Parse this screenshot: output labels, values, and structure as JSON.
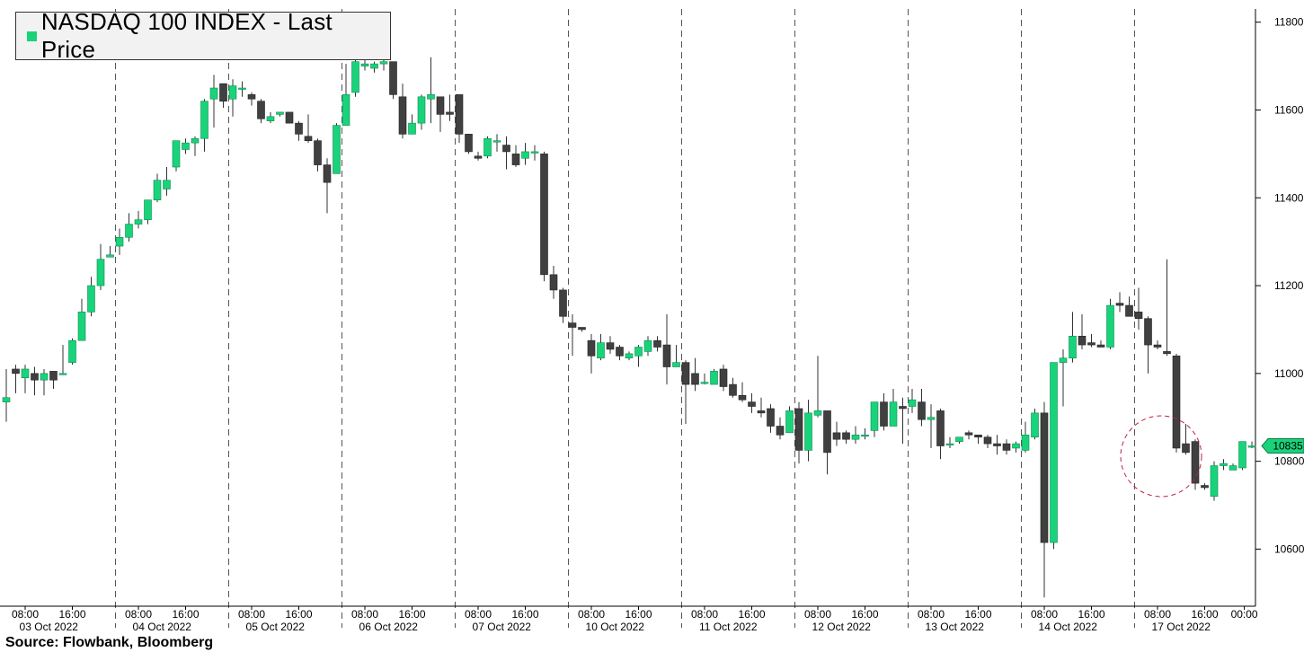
{
  "legend": {
    "label": "NASDAQ 100 INDEX - Last Price",
    "swatch_color": "#19d37a"
  },
  "source": "Source:  Flowbank, Bloomberg",
  "colors": {
    "up": "#19d37a",
    "down": "#404040",
    "wick": "#333333"
  },
  "chart_data": {
    "type": "candlestick",
    "title": "NASDAQ 100 INDEX - Last Price",
    "ylim": [
      10470,
      11830
    ],
    "yticks": [
      10600,
      10800,
      11000,
      11200,
      11400,
      11600,
      11800
    ],
    "last_price": 10835,
    "days": [
      {
        "date": "03 Oct 2022",
        "ticks": [
          "08:00",
          "16:00"
        ]
      },
      {
        "date": "04 Oct 2022",
        "ticks": [
          "08:00",
          "16:00"
        ]
      },
      {
        "date": "05 Oct 2022",
        "ticks": [
          "08:00",
          "16:00"
        ]
      },
      {
        "date": "06 Oct 2022",
        "ticks": [
          "08:00",
          "16:00"
        ]
      },
      {
        "date": "07 Oct 2022",
        "ticks": [
          "08:00",
          "16:00"
        ]
      },
      {
        "date": "10 Oct 2022",
        "ticks": [
          "08:00",
          "16:00"
        ]
      },
      {
        "date": "11 Oct 2022",
        "ticks": [
          "08:00",
          "16:00"
        ]
      },
      {
        "date": "12 Oct 2022",
        "ticks": [
          "08:00",
          "16:00"
        ]
      },
      {
        "date": "13 Oct 2022",
        "ticks": [
          "08:00",
          "16:00"
        ]
      },
      {
        "date": "14 Oct 2022",
        "ticks": [
          "08:00",
          "16:00"
        ]
      },
      {
        "date": "17 Oct 2022",
        "ticks": [
          "08:00",
          "16:00",
          "00:00"
        ]
      }
    ],
    "candles": [
      [
        10935,
        11010,
        10945,
        10890
      ],
      [
        11010,
        11020,
        11000,
        10955
      ],
      [
        10990,
        11020,
        11010,
        10955
      ],
      [
        11000,
        11015,
        10985,
        10950
      ],
      [
        10985,
        11010,
        11000,
        10950
      ],
      [
        11005,
        11005,
        10985,
        10965
      ],
      [
        11000,
        11065,
        11000,
        11000
      ],
      [
        11025,
        11080,
        11075,
        11020
      ],
      [
        11075,
        11170,
        11140,
        11105
      ],
      [
        11140,
        11220,
        11200,
        11130
      ],
      [
        11200,
        11295,
        11260,
        11190
      ],
      [
        11265,
        11290,
        11270,
        11265
      ],
      [
        11290,
        11330,
        11310,
        11270
      ],
      [
        11310,
        11365,
        11340,
        11300
      ],
      [
        11340,
        11370,
        11350,
        11330
      ],
      [
        11350,
        11385,
        11395,
        11340
      ],
      [
        11395,
        11455,
        11440,
        11390
      ],
      [
        11420,
        11470,
        11440,
        11405
      ],
      [
        11470,
        11530,
        11530,
        11460
      ],
      [
        11510,
        11535,
        11525,
        11500
      ],
      [
        11525,
        11540,
        11535,
        11495
      ],
      [
        11535,
        11625,
        11620,
        11505
      ],
      [
        11625,
        11680,
        11650,
        11560
      ],
      [
        11660,
        11660,
        11620,
        11605
      ],
      [
        11625,
        11670,
        11655,
        11585
      ],
      [
        11650,
        11665,
        11650,
        11630
      ],
      [
        11635,
        11640,
        11625,
        11610
      ],
      [
        11620,
        11625,
        11580,
        11570
      ],
      [
        11575,
        11595,
        11585,
        11570
      ],
      [
        11590,
        11595,
        11595,
        11585
      ],
      [
        11595,
        11595,
        11570,
        11570
      ],
      [
        11570,
        11575,
        11545,
        11530
      ],
      [
        11540,
        11590,
        11530,
        11525
      ],
      [
        11530,
        11535,
        11475,
        11460
      ],
      [
        11475,
        11490,
        11435,
        11365
      ],
      [
        11455,
        11570,
        11565,
        11455
      ],
      [
        11565,
        11705,
        11635,
        11565
      ],
      [
        11640,
        11725,
        11710,
        11630
      ],
      [
        11700,
        11720,
        11705,
        11690
      ],
      [
        11695,
        11710,
        11705,
        11685
      ],
      [
        11705,
        11720,
        11710,
        11690
      ],
      [
        11710,
        11710,
        11635,
        11625
      ],
      [
        11630,
        11660,
        11545,
        11535
      ],
      [
        11545,
        11590,
        11570,
        11545
      ],
      [
        11570,
        11635,
        11630,
        11555
      ],
      [
        11625,
        11720,
        11635,
        11570
      ],
      [
        11630,
        11630,
        11590,
        11550
      ],
      [
        11595,
        11635,
        11590,
        11575
      ],
      [
        11635,
        11635,
        11545,
        11525
      ],
      [
        11545,
        11545,
        11505,
        11500
      ],
      [
        11495,
        11505,
        11490,
        11485
      ],
      [
        11495,
        11540,
        11535,
        11490
      ],
      [
        11530,
        11545,
        11530,
        11505
      ],
      [
        11520,
        11540,
        11505,
        11465
      ],
      [
        11500,
        11520,
        11475,
        11470
      ],
      [
        11490,
        11525,
        11505,
        11475
      ],
      [
        11505,
        11520,
        11505,
        11485
      ],
      [
        11500,
        11505,
        11225,
        11210
      ],
      [
        11225,
        11245,
        11190,
        11170
      ],
      [
        11190,
        11195,
        11130,
        11115
      ],
      [
        11115,
        11135,
        11105,
        11040
      ],
      [
        11105,
        11105,
        11100,
        11095
      ],
      [
        11075,
        11090,
        11040,
        11000
      ],
      [
        11035,
        11090,
        11070,
        11030
      ],
      [
        11070,
        11085,
        11055,
        11045
      ],
      [
        11060,
        11065,
        11040,
        11030
      ],
      [
        11035,
        11050,
        11045,
        11030
      ],
      [
        11040,
        11065,
        11060,
        11015
      ],
      [
        11050,
        11085,
        11075,
        11040
      ],
      [
        11075,
        11085,
        11060,
        11050
      ],
      [
        11065,
        11135,
        11015,
        10975
      ],
      [
        11015,
        11065,
        11025,
        11015
      ],
      [
        11025,
        11030,
        10975,
        10885
      ],
      [
        11000,
        11035,
        10975,
        10960
      ],
      [
        10980,
        11000,
        10980,
        10975
      ],
      [
        10975,
        11010,
        11005,
        10975
      ],
      [
        11010,
        11020,
        10970,
        10960
      ],
      [
        10975,
        10990,
        10950,
        10945
      ],
      [
        10950,
        10980,
        10940,
        10935
      ],
      [
        10935,
        10955,
        10925,
        10910
      ],
      [
        10915,
        10945,
        10910,
        10900
      ],
      [
        10920,
        10930,
        10880,
        10865
      ],
      [
        10880,
        10900,
        10860,
        10850
      ],
      [
        10865,
        10925,
        10915,
        10865
      ],
      [
        10920,
        10935,
        10825,
        10795
      ],
      [
        10825,
        10940,
        10910,
        10800
      ],
      [
        10905,
        11040,
        10915,
        10900
      ],
      [
        10915,
        10905,
        10820,
        10770
      ],
      [
        10865,
        10890,
        10850,
        10835
      ],
      [
        10865,
        10870,
        10850,
        10840
      ],
      [
        10850,
        10880,
        10860,
        10840
      ],
      [
        10860,
        10875,
        10860,
        10850
      ],
      [
        10870,
        10935,
        10935,
        10855
      ],
      [
        10935,
        10955,
        10880,
        10870
      ],
      [
        10880,
        10965,
        10935,
        10880
      ],
      [
        10925,
        10945,
        10920,
        10840
      ],
      [
        10925,
        10965,
        10940,
        10910
      ],
      [
        10935,
        10965,
        10895,
        10880
      ],
      [
        10895,
        10930,
        10900,
        10830
      ],
      [
        10915,
        10920,
        10835,
        10805
      ],
      [
        10840,
        10855,
        10840,
        10830
      ],
      [
        10845,
        10850,
        10855,
        10840
      ],
      [
        10865,
        10870,
        10860,
        10850
      ],
      [
        10860,
        10860,
        10855,
        10840
      ],
      [
        10855,
        10860,
        10840,
        10830
      ],
      [
        10840,
        10860,
        10835,
        10815
      ],
      [
        10840,
        10850,
        10825,
        10815
      ],
      [
        10830,
        10845,
        10840,
        10820
      ],
      [
        10825,
        10890,
        10860,
        10820
      ],
      [
        10855,
        10920,
        10910,
        10850
      ],
      [
        10910,
        10935,
        10615,
        10490
      ],
      [
        10615,
        11000,
        11025,
        10600
      ],
      [
        11025,
        11055,
        11035,
        10925
      ],
      [
        11035,
        11140,
        11085,
        11025
      ],
      [
        11085,
        11135,
        11065,
        11055
      ],
      [
        11070,
        11090,
        11065,
        11060
      ],
      [
        11065,
        11075,
        11060,
        11060
      ],
      [
        11060,
        11170,
        11155,
        11055
      ],
      [
        11160,
        11185,
        11155,
        11140
      ],
      [
        11155,
        11175,
        11130,
        11135
      ],
      [
        11140,
        11195,
        11125,
        11100
      ],
      [
        11125,
        11130,
        11065,
        11000
      ],
      [
        11065,
        11075,
        11060,
        11055
      ],
      [
        11050,
        11260,
        11045,
        11040
      ],
      [
        11040,
        11045,
        10830,
        10820
      ],
      [
        10840,
        10885,
        10820,
        10815
      ],
      [
        10845,
        10850,
        10750,
        10735
      ],
      [
        10745,
        10750,
        10740,
        10735
      ],
      [
        10720,
        10800,
        10790,
        10710
      ],
      [
        10790,
        10805,
        10795,
        10780
      ],
      [
        10780,
        10795,
        10790,
        10780
      ],
      [
        10785,
        10845,
        10845,
        10780
      ],
      [
        10835,
        10845,
        10835,
        10830
      ]
    ]
  }
}
